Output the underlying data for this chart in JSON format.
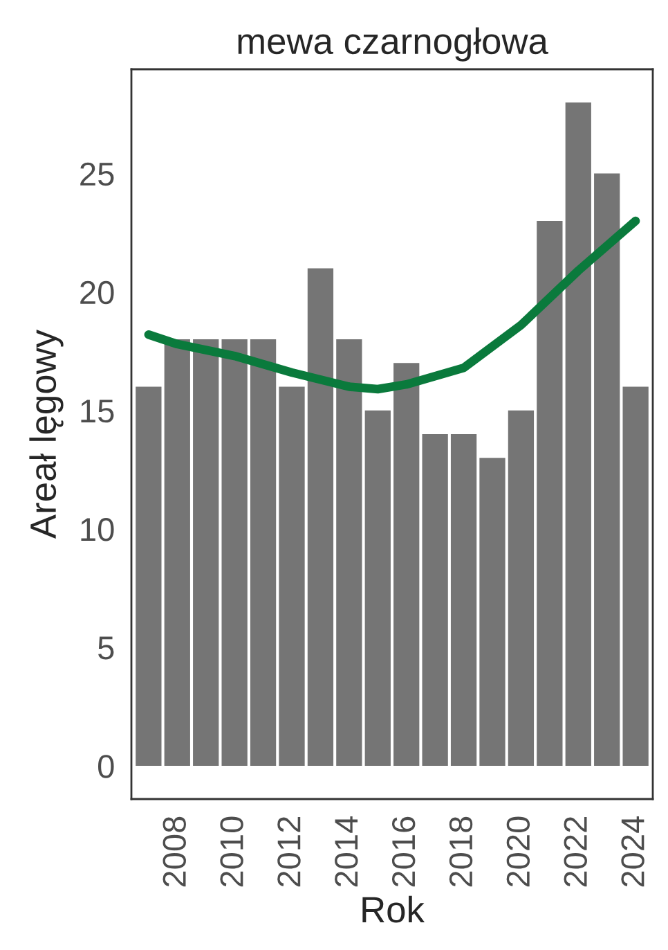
{
  "chart_data": {
    "type": "bar",
    "title": "mewa czarnogłowa",
    "xlabel": "Rok",
    "ylabel": "Areał lęgowy",
    "x": [
      2007,
      2008,
      2009,
      2010,
      2011,
      2012,
      2013,
      2014,
      2015,
      2016,
      2017,
      2018,
      2019,
      2020,
      2021,
      2022,
      2023,
      2024
    ],
    "series": [
      {
        "color": "#757575",
        "values": [
          16,
          18,
          18,
          18,
          18,
          16,
          21,
          18,
          15,
          17,
          14,
          14,
          13,
          15,
          23,
          28,
          25,
          16
        ]
      },
      {
        "type": "line",
        "color": "#0a7a3c",
        "x": [
          2007,
          2008,
          2010,
          2012,
          2014,
          2015,
          2016,
          2018,
          2020,
          2022,
          2024
        ],
        "values": [
          18.2,
          17.8,
          17.3,
          16.6,
          16.0,
          15.9,
          16.1,
          16.8,
          18.6,
          20.9,
          23.0
        ]
      }
    ],
    "xlim": [
      2006.4,
      2024.6
    ],
    "xticks": [
      2008,
      2010,
      2012,
      2014,
      2016,
      2018,
      2020,
      2022,
      2024
    ],
    "ylim": [
      -1.4,
      29.4
    ],
    "yticks": [
      0,
      5,
      10,
      15,
      20,
      25
    ],
    "grid": false,
    "legend": false
  }
}
